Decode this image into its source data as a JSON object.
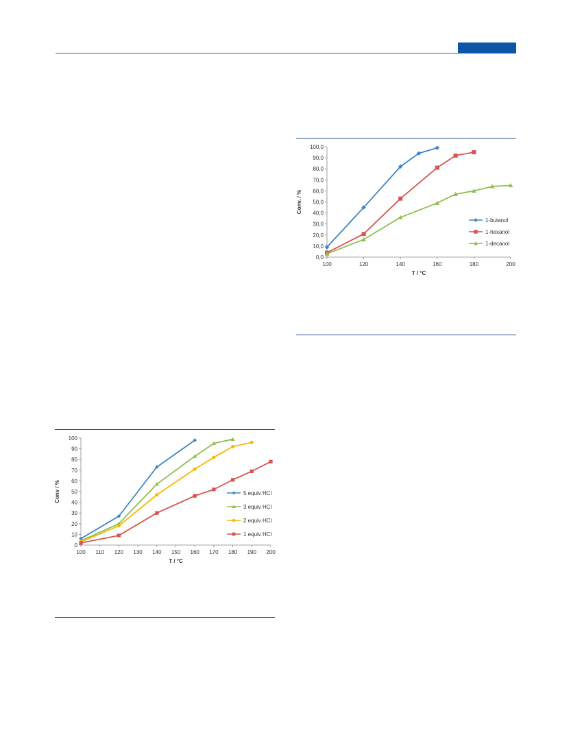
{
  "page": {
    "colors": {
      "header_rule": "#1a5fb4",
      "header_tab": "#0b56a6",
      "figure_rule": "#1f4e8c"
    }
  },
  "chart_data": [
    {
      "type": "line",
      "x_ticks": [
        100,
        120,
        140,
        160,
        180,
        200
      ],
      "y_ticks": [
        "0,0",
        "10,0",
        "20,0",
        "30,0",
        "40,0",
        "50,0",
        "60,0",
        "70,0",
        "80,0",
        "90,0",
        "100,0"
      ],
      "xlabel": "T / °C",
      "ylabel": "Conv. / %",
      "xlim": [
        100,
        200
      ],
      "ylim": [
        0,
        100
      ],
      "grid": false,
      "legend_position": "right",
      "series": [
        {
          "name": "1-butanol",
          "color": "#3a85c6",
          "marker": "diamond",
          "x": [
            100,
            120,
            140,
            150,
            160
          ],
          "y": [
            9,
            45,
            82,
            94,
            99
          ]
        },
        {
          "name": "1-hexanol",
          "color": "#d9534f",
          "marker": "square",
          "x": [
            100,
            120,
            140,
            160,
            170,
            180
          ],
          "y": [
            4,
            21,
            53,
            81,
            92,
            95
          ]
        },
        {
          "name": "1-decanol",
          "color": "#8dc04f",
          "marker": "triangle",
          "x": [
            100,
            120,
            140,
            160,
            170,
            180,
            190,
            200
          ],
          "y": [
            3,
            16,
            36,
            49,
            57,
            60,
            64,
            65
          ]
        }
      ]
    },
    {
      "type": "line",
      "x_ticks": [
        100,
        110,
        120,
        130,
        140,
        150,
        160,
        170,
        180,
        190,
        200
      ],
      "y_ticks": [
        "0",
        "10",
        "20",
        "30",
        "40",
        "50",
        "60",
        "70",
        "80",
        "90",
        "100"
      ],
      "xlabel": "T / °C",
      "ylabel": "Conv / %",
      "xlim": [
        100,
        200
      ],
      "ylim": [
        0,
        100
      ],
      "grid": false,
      "legend_position": "right",
      "series": [
        {
          "name": "5 equiv HCl",
          "color": "#3a85c6",
          "marker": "diamond",
          "x": [
            100,
            120,
            140,
            160
          ],
          "y": [
            6,
            27,
            73,
            98
          ]
        },
        {
          "name": "3 equiv HCl",
          "color": "#8dc04f",
          "marker": "triangle",
          "x": [
            100,
            120,
            140,
            160,
            170,
            180
          ],
          "y": [
            4,
            20,
            57,
            83,
            95,
            99
          ]
        },
        {
          "name": "2 equiv HCl",
          "color": "#f5b800",
          "marker": "circle",
          "x": [
            100,
            120,
            140,
            160,
            170,
            180,
            190
          ],
          "y": [
            3,
            18,
            47,
            71,
            82,
            92,
            96
          ]
        },
        {
          "name": "1 equiv HCl",
          "color": "#d9534f",
          "marker": "square",
          "x": [
            100,
            120,
            140,
            160,
            170,
            180,
            190,
            200
          ],
          "y": [
            2,
            9,
            30,
            46,
            52,
            61,
            69,
            78
          ]
        }
      ]
    }
  ]
}
